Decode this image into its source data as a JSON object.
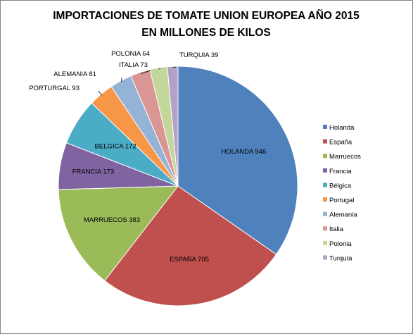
{
  "chart_data": {
    "type": "pie",
    "title_line1": "IMPORTACIONES DE TOMATE UNION EUROPEA AÑO 2015",
    "title_line2": "EN MILLONES DE KILOS",
    "slices": [
      {
        "legend": "Holanda",
        "label": "HOLANDA",
        "value": 946,
        "color": "#4F81BD"
      },
      {
        "legend": "España",
        "label": "ESPAÑA",
        "value": 705,
        "color": "#C0504D"
      },
      {
        "legend": "Marruecos",
        "label": "MARRUECOS",
        "value": 383,
        "color": "#9BBB59"
      },
      {
        "legend": "Francia",
        "label": "FRANCIA",
        "value": 173,
        "color": "#8064A2"
      },
      {
        "legend": "Bélgica",
        "label": "BELGICA",
        "value": 172,
        "color": "#4BACC6"
      },
      {
        "legend": "Portugal",
        "label": "PORTURGAL",
        "value": 93,
        "color": "#F79646"
      },
      {
        "legend": "Alemania",
        "label": "ALEMANIA",
        "value": 81,
        "color": "#95B3D7"
      },
      {
        "legend": "Italia",
        "label": "ITALIA",
        "value": 73,
        "color": "#D99694"
      },
      {
        "legend": "Polonia",
        "label": "POLONIA",
        "value": 64,
        "color": "#C3D69B"
      },
      {
        "legend": "Turquía",
        "label": "TURQUIA",
        "value": 39,
        "color": "#B2A2C7"
      }
    ],
    "legend_position": "right"
  }
}
